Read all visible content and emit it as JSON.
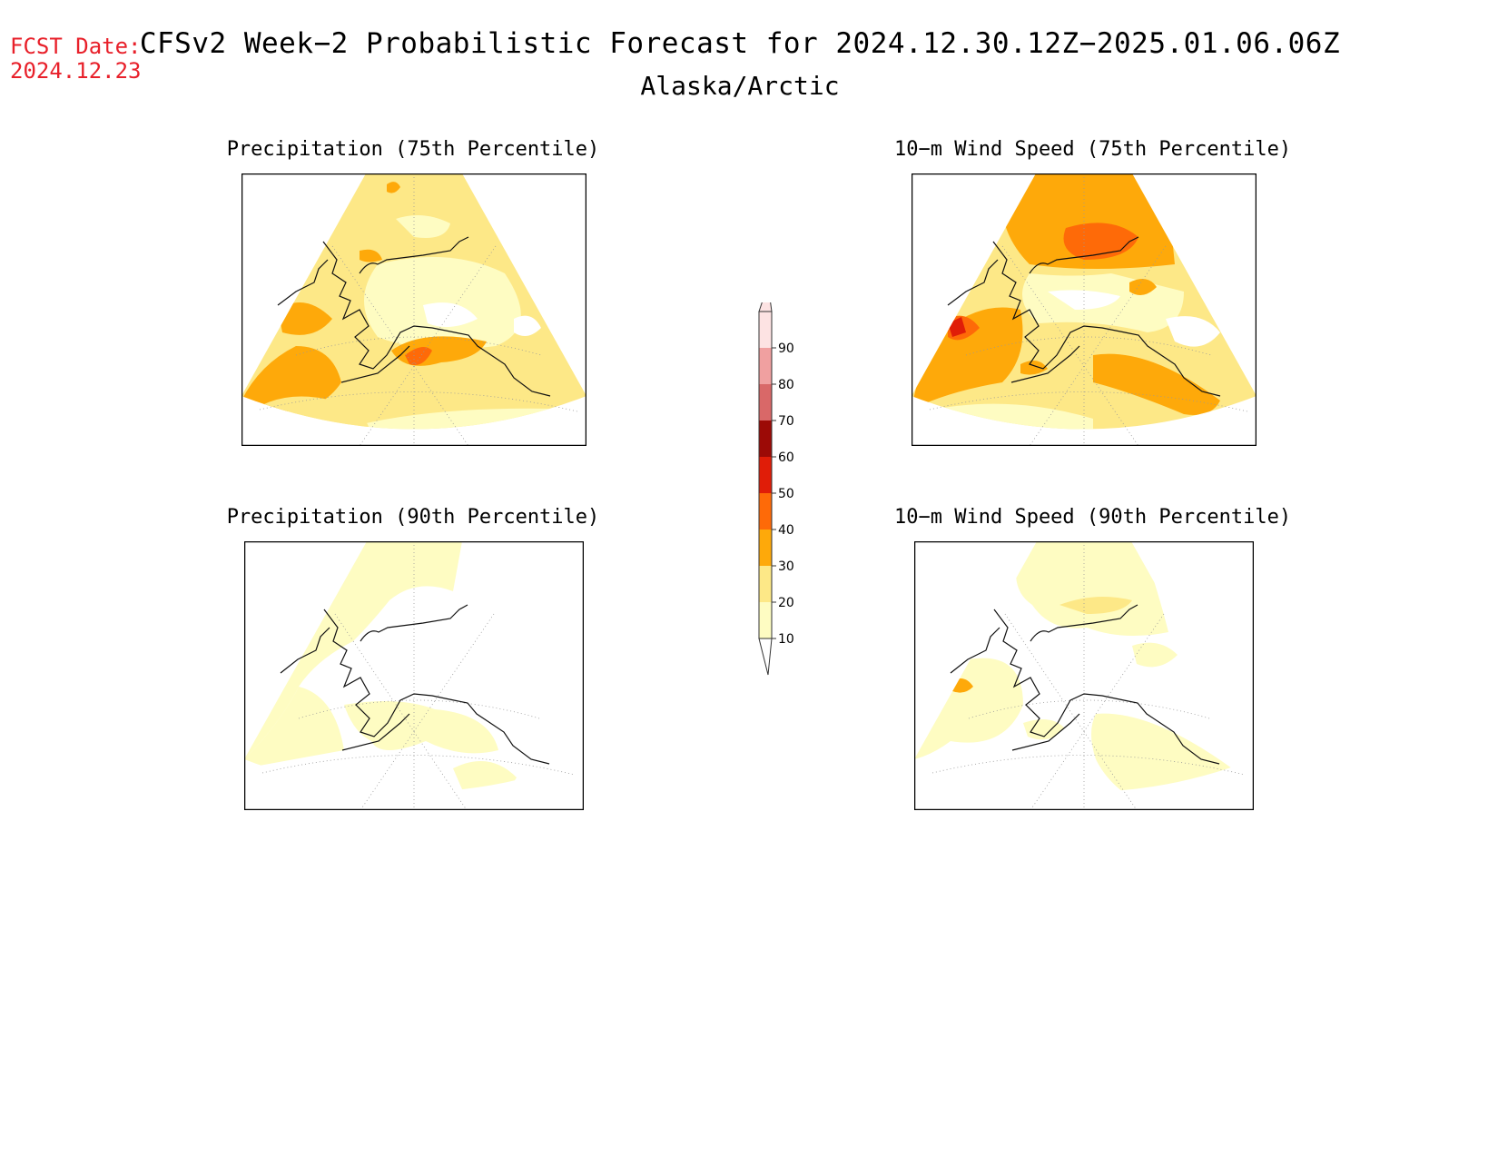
{
  "header": {
    "fcst_label": "FCST Date:",
    "fcst_date": "2024.12.23",
    "title": "CFSv2 Week−2 Probabilistic Forecast for 2024.12.30.12Z−2025.01.06.06Z",
    "subtitle": "Alaska/Arctic"
  },
  "panels": [
    {
      "title": "Precipitation (75th Percentile)",
      "variable": "precipitation",
      "percentile": 75
    },
    {
      "title": "10−m Wind Speed (75th Percentile)",
      "variable": "wind_speed",
      "percentile": 75
    },
    {
      "title": "Precipitation (90th Percentile)",
      "variable": "precipitation",
      "percentile": 90
    },
    {
      "title": "10−m Wind Speed (90th Percentile)",
      "variable": "wind_speed",
      "percentile": 90
    }
  ],
  "colorbar": {
    "ticks": [
      "10",
      "20",
      "30",
      "40",
      "50",
      "60",
      "70",
      "80",
      "90"
    ],
    "colors": [
      "#fefcc2",
      "#fde887",
      "#fea90a",
      "#fe6a08",
      "#e01d08",
      "#9c0a06",
      "#d96868",
      "#f0a0a0",
      "#fde3e3"
    ]
  }
}
